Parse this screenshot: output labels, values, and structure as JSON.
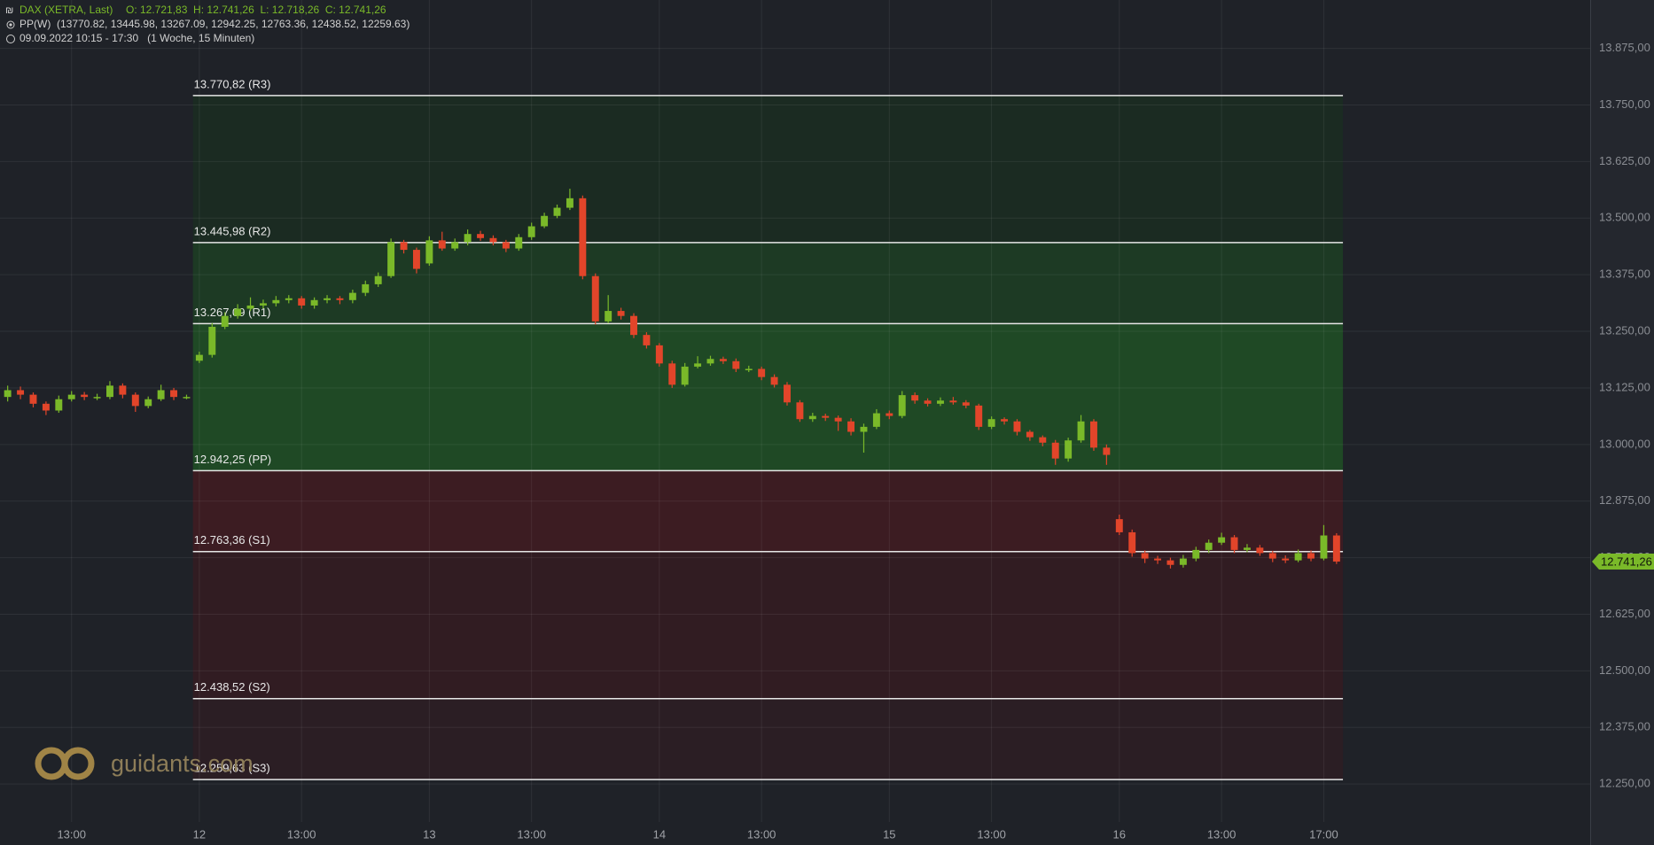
{
  "header": {
    "symbol": "DAX (XETRA, Last)",
    "ohlc": "O: 12.721,83  H: 12.741,26  L: 12.718,26  C: 12.741,26",
    "indicator": "PP(W)  (13770.82, 13445.98, 13267.09, 12942.25, 12763.36, 12438.52, 12259.63)",
    "period": "09.09.2022 10:15 - 17:30   (1 Woche, 15 Minuten)"
  },
  "watermark": "guidants.com",
  "chart_data": {
    "type": "candlestick",
    "up_color": "#7ab929",
    "down_color": "#e2452a",
    "xlim": [
      -31.2,
      217.7
    ],
    "ylim": [
      12166,
      13982
    ],
    "grid": true,
    "xticks": [
      {
        "value": -20,
        "label": "13:00"
      },
      {
        "value": 0,
        "label": "12"
      },
      {
        "value": 16,
        "label": "13:00"
      },
      {
        "value": 36,
        "label": "13"
      },
      {
        "value": 52,
        "label": "13:00"
      },
      {
        "value": 72,
        "label": "14"
      },
      {
        "value": 88,
        "label": "13:00"
      },
      {
        "value": 108,
        "label": "15"
      },
      {
        "value": 124,
        "label": "13:00"
      },
      {
        "value": 144,
        "label": "16"
      },
      {
        "value": 160,
        "label": "13:00"
      },
      {
        "value": 176,
        "label": "17:00"
      }
    ],
    "yticks": [
      {
        "value": 12250,
        "label": "12.250,00"
      },
      {
        "value": 12375,
        "label": "12.375,00"
      },
      {
        "value": 12500,
        "label": "12.500,00"
      },
      {
        "value": 12625,
        "label": "12.625,00"
      },
      {
        "value": 12750,
        "label": "12.750,00"
      },
      {
        "value": 12875,
        "label": "12.875,00"
      },
      {
        "value": 13000,
        "label": "13.000,00"
      },
      {
        "value": 13125,
        "label": "13.125,00"
      },
      {
        "value": 13250,
        "label": "13.250,00"
      },
      {
        "value": 13375,
        "label": "13.375,00"
      },
      {
        "value": 13500,
        "label": "13.500,00"
      },
      {
        "value": 13625,
        "label": "13.625,00"
      },
      {
        "value": 13750,
        "label": "13.750,00"
      },
      {
        "value": 13875,
        "label": "13.875,00"
      }
    ],
    "pivots": [
      {
        "value": 13770.82,
        "label": "13.770,82 (R3)"
      },
      {
        "value": 13445.98,
        "label": "13.445,98 (R2)"
      },
      {
        "value": 13267.09,
        "label": "13.267,09 (R1)"
      },
      {
        "value": 12942.25,
        "label": "12.942,25 (PP)"
      },
      {
        "value": 12763.36,
        "label": "12.763,36 (S1)"
      },
      {
        "value": 12438.52,
        "label": "12.438,52 (S2)"
      },
      {
        "value": 12259.63,
        "label": "12.259,63 (S3)"
      }
    ],
    "pivot_zone_colors": [
      "#1b2b22",
      "#1d3a24",
      "#1f4925",
      "#3c1c22",
      "#311c22",
      "#2b1e24"
    ],
    "last_price": {
      "value": 12741.26,
      "label": "12.741,26"
    },
    "x": [
      -30,
      -28,
      -26,
      -24,
      -22,
      -20,
      -18,
      -16,
      -14,
      -12,
      -10,
      -8,
      -6,
      -4,
      -2,
      0,
      2,
      4,
      6,
      8,
      10,
      12,
      14,
      16,
      18,
      20,
      22,
      24,
      26,
      28,
      30,
      32,
      34,
      36,
      38,
      40,
      42,
      44,
      46,
      48,
      50,
      52,
      54,
      56,
      58,
      60,
      62,
      64,
      66,
      68,
      70,
      72,
      74,
      76,
      78,
      80,
      82,
      84,
      86,
      88,
      90,
      92,
      94,
      96,
      98,
      100,
      102,
      104,
      106,
      108,
      110,
      112,
      114,
      116,
      118,
      120,
      122,
      124,
      126,
      128,
      130,
      132,
      134,
      136,
      138,
      140,
      142,
      144,
      146,
      148,
      150,
      152,
      154,
      156,
      158,
      160,
      162,
      164,
      166,
      168,
      170,
      172,
      174,
      176,
      178
    ],
    "open": [
      13105,
      13120,
      13110,
      13090,
      13075,
      13100,
      13110,
      13105,
      13105,
      13130,
      13110,
      13085,
      13100,
      13120,
      13105,
      13185,
      13198,
      13260,
      13284,
      13300,
      13307,
      13312,
      13319,
      13323,
      13307,
      13319,
      13323,
      13319,
      13335,
      13354,
      13372,
      13447,
      13430,
      13400,
      13451,
      13433,
      13447,
      13465,
      13456,
      13447,
      13433,
      13458,
      13482,
      13505,
      13523,
      13544,
      13372,
      13272,
      13295,
      13284,
      13242,
      13219,
      13179,
      13132,
      13172,
      13179,
      13189,
      13184,
      13167,
      13167,
      13149,
      13132,
      13093,
      13056,
      13063,
      13059,
      13051,
      13028,
      13039,
      13069,
      13063,
      13109,
      13097,
      13090,
      13097,
      13093,
      13086,
      13039,
      13056,
      13051,
      13028,
      13016,
      13004,
      12969,
      13009,
      13051,
      12993,
      12835,
      12806,
      12760,
      12748,
      12744,
      12734,
      12748,
      12767,
      12783,
      12795,
      12767,
      12772,
      12760,
      12748,
      12744,
      12760,
      12748,
      12799
    ],
    "high": [
      13130,
      13128,
      13115,
      13095,
      13108,
      13118,
      13116,
      13112,
      13140,
      13135,
      13115,
      13106,
      13132,
      13125,
      13110,
      13205,
      13268,
      13292,
      13310,
      13325,
      13320,
      13328,
      13330,
      13328,
      13325,
      13330,
      13328,
      13342,
      13362,
      13380,
      13455,
      13452,
      13435,
      13460,
      13470,
      13455,
      13475,
      13472,
      13462,
      13452,
      13465,
      13490,
      13512,
      13530,
      13565,
      13550,
      13378,
      13330,
      13302,
      13290,
      13248,
      13224,
      13185,
      13180,
      13195,
      13196,
      13194,
      13190,
      13174,
      13172,
      13155,
      13138,
      13098,
      13070,
      13068,
      13064,
      13058,
      13046,
      13078,
      13075,
      13118,
      13115,
      13102,
      13104,
      13105,
      13098,
      13090,
      13062,
      13060,
      13056,
      13032,
      13020,
      13010,
      13015,
      13065,
      13056,
      13000,
      12845,
      12812,
      12766,
      12754,
      12750,
      12756,
      12774,
      12790,
      12805,
      12800,
      12780,
      12778,
      12765,
      12755,
      12768,
      12766,
      12822,
      12804
    ],
    "low": [
      13095,
      13100,
      13082,
      13065,
      13070,
      13095,
      13098,
      13098,
      13100,
      13102,
      13072,
      13080,
      13096,
      13098,
      13100,
      13180,
      13192,
      13255,
      13278,
      13295,
      13300,
      13305,
      13312,
      13300,
      13300,
      13312,
      13310,
      13312,
      13328,
      13348,
      13368,
      13422,
      13378,
      13395,
      13428,
      13428,
      13440,
      13450,
      13440,
      13425,
      13428,
      13452,
      13478,
      13500,
      13518,
      13365,
      13265,
      13268,
      13276,
      13235,
      13212,
      13172,
      13125,
      13128,
      13168,
      13174,
      13178,
      13160,
      13160,
      13142,
      13126,
      13086,
      13050,
      13050,
      13052,
      13030,
      13020,
      12982,
      13034,
      13056,
      13058,
      13090,
      13084,
      13085,
      13088,
      13080,
      13032,
      13034,
      13044,
      13020,
      13008,
      12996,
      12955,
      12962,
      13004,
      12986,
      12955,
      12800,
      12752,
      12738,
      12736,
      12726,
      12728,
      12742,
      12760,
      12778,
      12760,
      12762,
      12754,
      12740,
      12738,
      12740,
      12742,
      12744,
      12736
    ],
    "close": [
      13120,
      13110,
      13090,
      13075,
      13100,
      13110,
      13105,
      13105,
      13130,
      13110,
      13085,
      13100,
      13120,
      13105,
      13105,
      13198,
      13260,
      13284,
      13300,
      13307,
      13312,
      13319,
      13323,
      13307,
      13319,
      13323,
      13319,
      13335,
      13354,
      13372,
      13447,
      13430,
      13388,
      13451,
      13433,
      13447,
      13465,
      13456,
      13447,
      13433,
      13458,
      13482,
      13505,
      13523,
      13544,
      13372,
      13272,
      13295,
      13284,
      13242,
      13219,
      13179,
      13132,
      13172,
      13179,
      13189,
      13184,
      13167,
      13167,
      13149,
      13132,
      13093,
      13056,
      13063,
      13059,
      13051,
      13028,
      13039,
      13069,
      13063,
      13109,
      13097,
      13090,
      13097,
      13093,
      13086,
      13039,
      13056,
      13051,
      13028,
      13016,
      13004,
      12969,
      13009,
      13051,
      12993,
      12977,
      12806,
      12760,
      12748,
      12744,
      12734,
      12748,
      12767,
      12783,
      12795,
      12767,
      12772,
      12760,
      12748,
      12744,
      12760,
      12748,
      12799,
      12741.26
    ]
  }
}
